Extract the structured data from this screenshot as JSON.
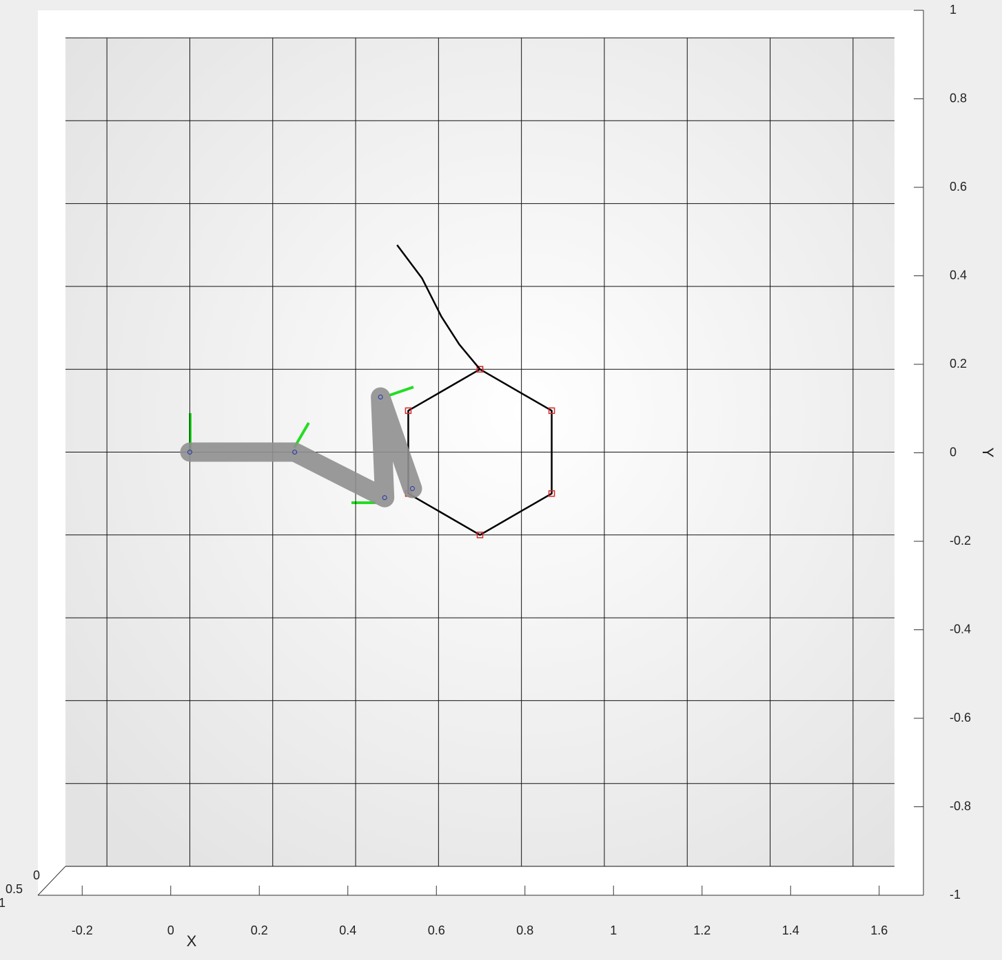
{
  "chart_data": {
    "type": "line",
    "x_label": "X",
    "y_label": "Y",
    "xlim": [
      -0.3,
      1.7
    ],
    "ylim": [
      -1,
      1
    ],
    "zlim": [
      0,
      1
    ],
    "xticks": [
      -0.2,
      0,
      0.2,
      0.4,
      0.6,
      0.8,
      1,
      1.2,
      1.4,
      1.6
    ],
    "yticks": [
      -1,
      -0.8,
      -0.6,
      -0.4,
      -0.2,
      0,
      0.2,
      0.4,
      0.6,
      0.8,
      1
    ],
    "zticks": [
      0,
      0.5,
      1
    ],
    "grid": true,
    "series": [
      {
        "color": "#000000",
        "marker": "#d62728",
        "x": [
          0.7,
          0.873,
          0.873,
          0.7,
          0.527,
          0.527,
          0.7
        ],
        "values": [
          0.2,
          0.1,
          -0.1,
          -0.2,
          -0.1,
          0.1,
          0.2
        ]
      },
      {
        "color": "#000000",
        "x": [
          0.5,
          0.56,
          0.607,
          0.65,
          0.7
        ],
        "values": [
          0.5,
          0.42,
          0.327,
          0.26,
          0.2
        ]
      },
      {
        "color": "#8f8f8f",
        "x": [
          0,
          0.253,
          0.47,
          0.46,
          0.537
        ],
        "values": [
          0,
          0,
          -0.11,
          0.133,
          -0.088
        ]
      }
    ]
  }
}
